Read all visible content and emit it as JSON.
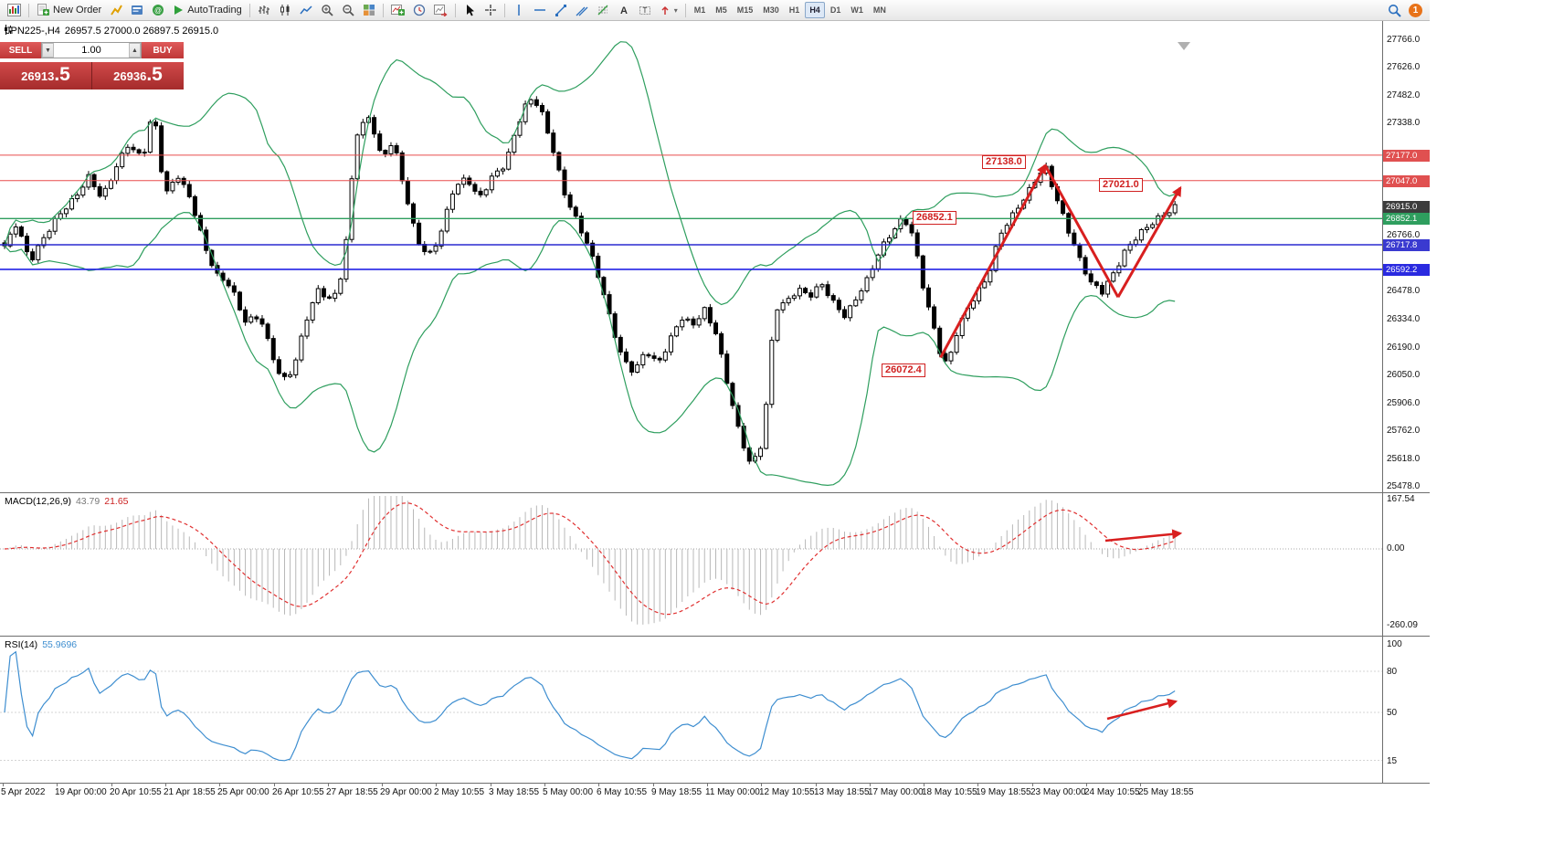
{
  "toolbar": {
    "new_order": "New Order",
    "autotrading": "AutoTrading",
    "timeframes": [
      "M1",
      "M5",
      "M15",
      "M30",
      "H1",
      "H4",
      "D1",
      "W1",
      "MN"
    ],
    "active_timeframe": "H4",
    "badge_count": "1"
  },
  "symbol_bar": {
    "symbol": "JPN225-,H4",
    "ohlc": "26957.5 27000.0 26897.5 26915.0"
  },
  "trade_panel": {
    "sell_label": "SELL",
    "buy_label": "BUY",
    "volume": "1.00",
    "sell_price": {
      "main": "26913",
      "big": ".5"
    },
    "buy_price": {
      "main": "26936",
      "big": ".5"
    }
  },
  "chart_data": {
    "type": "candlestick",
    "symbol": "JPN225-",
    "period": "H4",
    "open": "26957.5",
    "high": "27000.0",
    "low": "26897.5",
    "close": "26915.0",
    "price_min": 25478.0,
    "price_max": 27766.0,
    "num_candles": 210,
    "approx_close_path": [
      [
        0.0,
        26700
      ],
      [
        0.01,
        26830
      ],
      [
        0.022,
        26640
      ],
      [
        0.035,
        26760
      ],
      [
        0.05,
        26900
      ],
      [
        0.062,
        26980
      ],
      [
        0.072,
        27060
      ],
      [
        0.083,
        26950
      ],
      [
        0.095,
        27120
      ],
      [
        0.105,
        27230
      ],
      [
        0.118,
        27150
      ],
      [
        0.127,
        27420
      ],
      [
        0.137,
        26980
      ],
      [
        0.148,
        27070
      ],
      [
        0.16,
        26930
      ],
      [
        0.172,
        26700
      ],
      [
        0.182,
        26560
      ],
      [
        0.193,
        26500
      ],
      [
        0.205,
        26330
      ],
      [
        0.218,
        26360
      ],
      [
        0.228,
        26160
      ],
      [
        0.237,
        26010
      ],
      [
        0.247,
        26090
      ],
      [
        0.257,
        26330
      ],
      [
        0.268,
        26480
      ],
      [
        0.28,
        26420
      ],
      [
        0.29,
        26620
      ],
      [
        0.3,
        27280
      ],
      [
        0.312,
        27370
      ],
      [
        0.322,
        27160
      ],
      [
        0.332,
        27260
      ],
      [
        0.342,
        26990
      ],
      [
        0.352,
        26740
      ],
      [
        0.362,
        26660
      ],
      [
        0.372,
        26770
      ],
      [
        0.383,
        26990
      ],
      [
        0.395,
        27060
      ],
      [
        0.405,
        26960
      ],
      [
        0.417,
        27070
      ],
      [
        0.428,
        27120
      ],
      [
        0.438,
        27330
      ],
      [
        0.448,
        27480
      ],
      [
        0.457,
        27430
      ],
      [
        0.468,
        27210
      ],
      [
        0.478,
        26990
      ],
      [
        0.488,
        26860
      ],
      [
        0.498,
        26720
      ],
      [
        0.508,
        26540
      ],
      [
        0.518,
        26330
      ],
      [
        0.528,
        26140
      ],
      [
        0.538,
        26060
      ],
      [
        0.548,
        26170
      ],
      [
        0.558,
        26110
      ],
      [
        0.568,
        26230
      ],
      [
        0.578,
        26340
      ],
      [
        0.588,
        26300
      ],
      [
        0.598,
        26390
      ],
      [
        0.608,
        26270
      ],
      [
        0.618,
        25990
      ],
      [
        0.628,
        25740
      ],
      [
        0.638,
        25590
      ],
      [
        0.648,
        25720
      ],
      [
        0.658,
        26380
      ],
      [
        0.668,
        26420
      ],
      [
        0.678,
        26500
      ],
      [
        0.688,
        26460
      ],
      [
        0.698,
        26510
      ],
      [
        0.708,
        26420
      ],
      [
        0.718,
        26360
      ],
      [
        0.728,
        26450
      ],
      [
        0.738,
        26540
      ],
      [
        0.748,
        26690
      ],
      [
        0.758,
        26790
      ],
      [
        0.768,
        26860
      ],
      [
        0.776,
        26760
      ],
      [
        0.784,
        26520
      ],
      [
        0.792,
        26340
      ],
      [
        0.8,
        26160
      ],
      [
        0.806,
        26100
      ],
      [
        0.812,
        26240
      ],
      [
        0.82,
        26350
      ],
      [
        0.83,
        26470
      ],
      [
        0.84,
        26560
      ],
      [
        0.85,
        26760
      ],
      [
        0.86,
        26850
      ],
      [
        0.87,
        26950
      ],
      [
        0.88,
        27050
      ],
      [
        0.889,
        27120
      ],
      [
        0.898,
        26960
      ],
      [
        0.908,
        26810
      ],
      [
        0.918,
        26660
      ],
      [
        0.928,
        26520
      ],
      [
        0.938,
        26470
      ],
      [
        0.948,
        26580
      ],
      [
        0.958,
        26700
      ],
      [
        0.968,
        26760
      ],
      [
        0.978,
        26810
      ],
      [
        0.988,
        26870
      ],
      [
        1.0,
        26915
      ]
    ],
    "bollinger": {
      "period": 20,
      "deviation": 2,
      "color": "#2e9e5e"
    },
    "horizontal_lines": [
      {
        "price": 27177.0,
        "color": "#e84c4c",
        "width": 1,
        "label_bg": "#e05050"
      },
      {
        "price": 27047.0,
        "color": "#e84c4c",
        "width": 1,
        "label_bg": "#e05050"
      },
      {
        "price": 26852.1,
        "color": "#2e9e5e",
        "width": 1.3,
        "label_bg": "#2e9e5e"
      },
      {
        "price": 26717.8,
        "color": "#2a2ad0",
        "width": 1.6,
        "label_bg": "#3a3ad0"
      },
      {
        "price": 26592.2,
        "color": "#2222e6",
        "width": 1.6,
        "label_bg": "#2a2ae0"
      }
    ],
    "current_price": {
      "value": 26915.0,
      "label_bg": "#3c3c3c"
    },
    "axis_ticks": [
      27766.0,
      27626.0,
      27482.0,
      27338.0,
      26766.0,
      26478.0,
      26334.0,
      26190.0,
      26050.0,
      25906.0,
      25762.0,
      25618.0,
      25478.0
    ],
    "annotations": [
      {
        "text": "27138.0",
        "price": 27138.0,
        "t": 0.835
      },
      {
        "text": "27021.0",
        "price": 27021.0,
        "t": 0.935
      },
      {
        "text": "26852.1",
        "price": 26852.1,
        "t": 0.776
      },
      {
        "text": "26072.4",
        "price": 26072.4,
        "t": 0.75
      }
    ],
    "trend_arrows": [
      {
        "points": [
          [
            0.8,
            26140
          ],
          [
            0.889,
            27125
          ]
        ],
        "arrow_end": true
      },
      {
        "points": [
          [
            0.889,
            27125
          ],
          [
            0.951,
            26450
          ]
        ],
        "arrow_end": false
      },
      {
        "points": [
          [
            0.951,
            26450
          ],
          [
            1.004,
            27010
          ]
        ],
        "arrow_end": true
      }
    ],
    "time_labels": [
      "5 Apr 2022",
      "19 Apr 00:00",
      "20 Apr 10:55",
      "21 Apr 18:55",
      "25 Apr 00:00",
      "26 Apr 10:55",
      "27 Apr 18:55",
      "29 Apr 00:00",
      "2 May 10:55",
      "3 May 18:55",
      "5 May 00:00",
      "6 May 10:55",
      "9 May 18:55",
      "11 May 00:00",
      "12 May 10:55",
      "13 May 18:55",
      "17 May 00:00",
      "18 May 10:55",
      "19 May 18:55",
      "23 May 00:00",
      "24 May 10:55",
      "25 May 18:55"
    ]
  },
  "macd": {
    "label": "MACD(12,26,9)",
    "value_macd": "43.79",
    "value_signal": "21.65",
    "axis": [
      167.54,
      0.0,
      -260.09
    ],
    "hist_color": "#b8b8b8",
    "signal_color": "#e03030",
    "arrow": [
      [
        1210,
        52
      ],
      [
        1292,
        44
      ]
    ]
  },
  "rsi": {
    "label": "RSI(14)",
    "value": "55.9696",
    "axis": [
      100,
      80,
      50,
      15
    ],
    "levels": [
      80,
      50,
      15
    ],
    "line_color": "#3e8ed0",
    "arrow": [
      [
        1212,
        90
      ],
      [
        1287,
        71
      ]
    ]
  }
}
